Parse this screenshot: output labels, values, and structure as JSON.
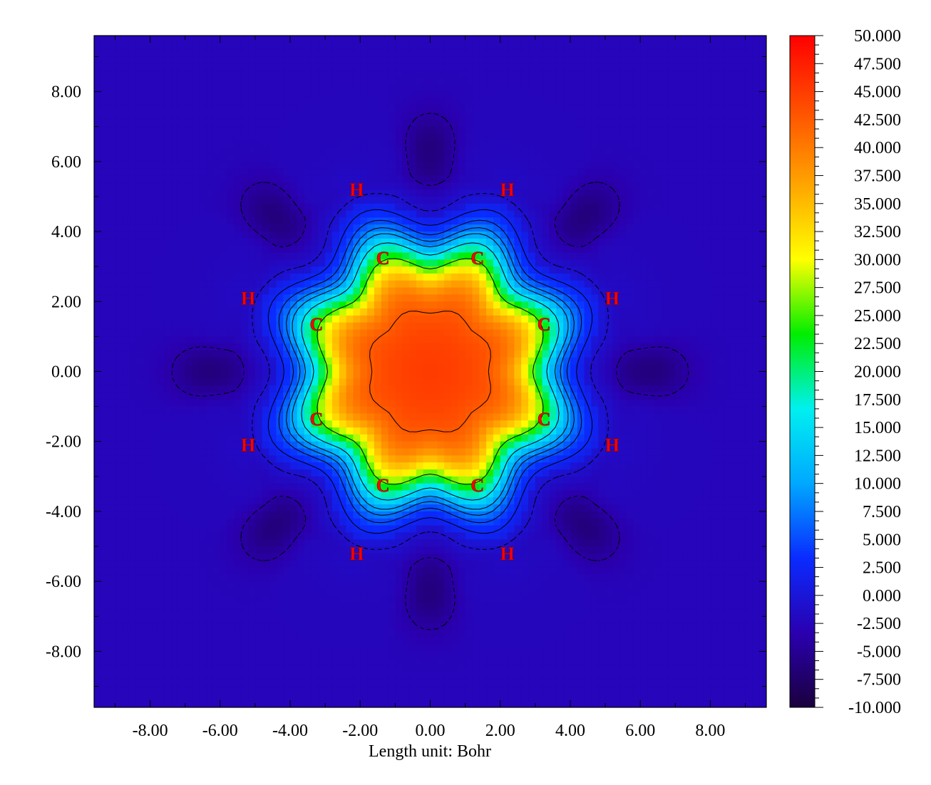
{
  "chart_data": {
    "type": "heatmap",
    "title": "",
    "xlabel": "Length unit: Bohr",
    "ylabel": "",
    "xlim": [
      -9.6,
      9.6
    ],
    "ylim": [
      -9.6,
      9.6
    ],
    "x_ticks": [
      -8,
      -6,
      -4,
      -2,
      0,
      2,
      4,
      6,
      8
    ],
    "y_ticks": [
      -8,
      -6,
      -4,
      -2,
      0,
      2,
      4,
      6,
      8
    ],
    "x_tick_labels": [
      "-8.00",
      "-6.00",
      "-4.00",
      "-2.00",
      "0.00",
      "2.00",
      "4.00",
      "6.00",
      "8.00"
    ],
    "y_tick_labels": [
      "8.00",
      "6.00",
      "4.00",
      "2.00",
      "0.00",
      "-2.00",
      "-4.00",
      "-6.00",
      "-8.00"
    ],
    "colorbar": {
      "min": -10,
      "max": 50,
      "tick_labels": [
        "50.000",
        "47.500",
        "45.000",
        "42.500",
        "40.000",
        "37.500",
        "35.000",
        "32.500",
        "30.000",
        "27.500",
        "25.000",
        "22.500",
        "20.000",
        "17.500",
        "15.000",
        "12.500",
        "10.000",
        "7.500",
        "5.000",
        "2.500",
        "0.000",
        "-2.500",
        "-5.000",
        "-7.500",
        "-10.000"
      ],
      "colors": [
        "#1a003d",
        "#2a00b0",
        "#0a2bff",
        "#00a8ff",
        "#00f0f0",
        "#00ee00",
        "#ffff00",
        "#ffa500",
        "#ff5000",
        "#ff0000"
      ]
    },
    "atoms": [
      {
        "label": "C",
        "x": -1.35,
        "y": 3.25
      },
      {
        "label": "C",
        "x": 1.35,
        "y": 3.25
      },
      {
        "label": "C",
        "x": 3.25,
        "y": 1.35
      },
      {
        "label": "C",
        "x": 3.25,
        "y": -1.35
      },
      {
        "label": "C",
        "x": 1.35,
        "y": -3.25
      },
      {
        "label": "C",
        "x": -1.35,
        "y": -3.25
      },
      {
        "label": "C",
        "x": -3.25,
        "y": -1.35
      },
      {
        "label": "C",
        "x": -3.25,
        "y": 1.35
      },
      {
        "label": "H",
        "x": -2.1,
        "y": 5.2
      },
      {
        "label": "H",
        "x": 2.2,
        "y": 5.2
      },
      {
        "label": "H",
        "x": 5.2,
        "y": 2.1
      },
      {
        "label": "H",
        "x": 5.2,
        "y": -2.1
      },
      {
        "label": "H",
        "x": 2.2,
        "y": -5.2
      },
      {
        "label": "H",
        "x": -2.1,
        "y": -5.2
      },
      {
        "label": "H",
        "x": -5.2,
        "y": -2.1
      },
      {
        "label": "H",
        "x": -5.2,
        "y": 2.1
      }
    ],
    "field_model": {
      "center_value": 45,
      "ring_radius": 4.8,
      "core_radius": 3.4,
      "ring_symmetry": 8,
      "far_value": -2.5,
      "lobe_value": -6.5
    },
    "solid_contour_levels": [
      2.5,
      5,
      7.5,
      10,
      15,
      25,
      42.5,
      46
    ],
    "dashed_contour_levels": [
      -1,
      -4
    ]
  }
}
